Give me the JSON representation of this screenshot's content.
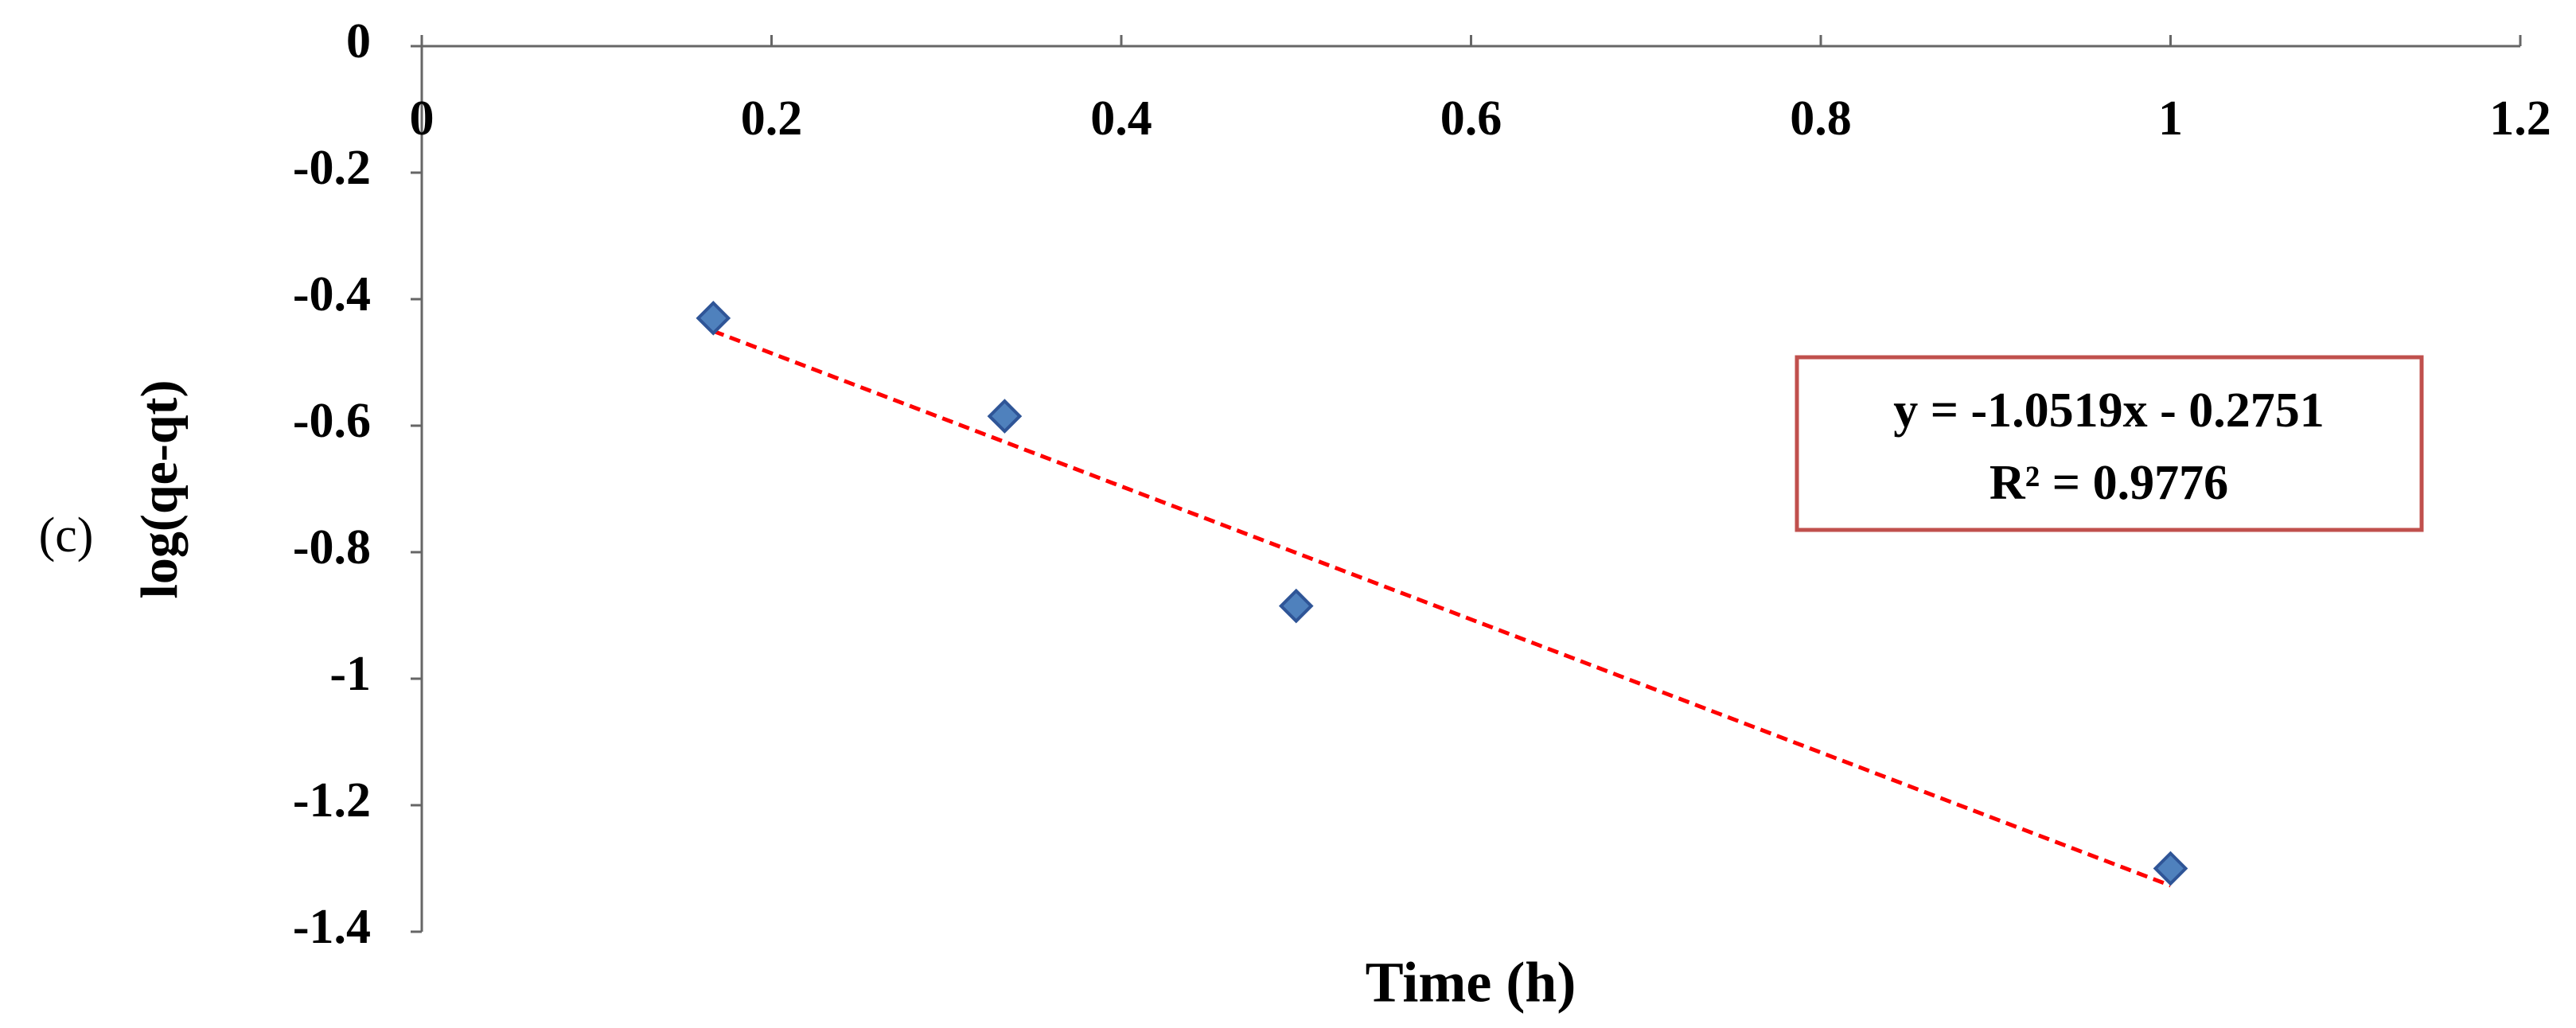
{
  "chart_data": {
    "type": "scatter",
    "panel_label": "(c)",
    "x_label": "Time (h)",
    "y_label": "log(qe-qt)",
    "x": [
      0.1667,
      0.3333,
      0.5,
      1
    ],
    "values": [
      -0.43,
      -0.585,
      -0.885,
      -1.3
    ],
    "color": "#4f81bd",
    "edge_color": "#2f5597",
    "xlim": [
      0,
      1.2
    ],
    "xticks": [
      0,
      0.2,
      0.4,
      0.6,
      0.8,
      1,
      1.2
    ],
    "ylim": [
      -1.4,
      0
    ],
    "yticks": [
      0,
      -0.2,
      -0.4,
      -0.6,
      -0.8,
      -1,
      -1.2,
      -1.4
    ],
    "trendline": {
      "slope": -1.0519,
      "intercept": -0.2751,
      "color": "#ff0000",
      "equation": "y = -1.0519x - 0.2751",
      "r_squared_label": "R² = 0.9776"
    },
    "annotation_border": "#c0504d"
  }
}
